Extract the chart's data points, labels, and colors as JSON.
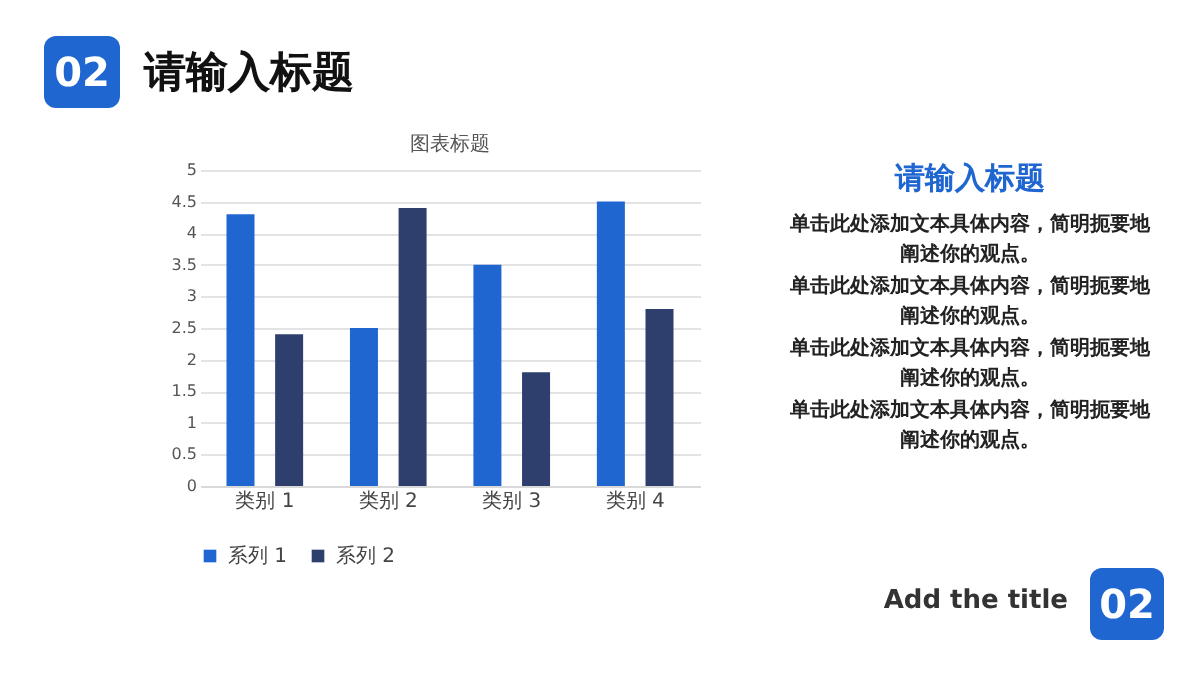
{
  "chart_data": {
    "type": "bar",
    "title": "图表标题",
    "categories": [
      "类别 1",
      "类别 2",
      "类别 3",
      "类别 4"
    ],
    "series": [
      {
        "name": "系列 1",
        "color": "#1f66d1",
        "values": [
          4.3,
          2.5,
          3.5,
          4.5
        ]
      },
      {
        "name": "系列 2",
        "color": "#2e3f6e",
        "values": [
          2.4,
          4.4,
          1.8,
          2.8
        ]
      }
    ],
    "ylim": [
      0,
      5
    ],
    "yticks": [
      0,
      0.5,
      1,
      1.5,
      2,
      2.5,
      3,
      3.5,
      4,
      4.5,
      5
    ],
    "grid": "y",
    "legend": "bottom",
    "annotations": [
      "02",
      "请输入标题",
      "请输入标题",
      "单击此处添加文本具体内容，简明扼要地阐述你的观点。",
      "单击此处添加文本具体内容，简明扼要地阐述你的观点。",
      "单击此处添加文本具体内容，简明扼要地阐述你的观点。",
      "单击此处添加文本具体内容，简明扼要地阐述你的观点。",
      "Add the title",
      "02"
    ]
  }
}
